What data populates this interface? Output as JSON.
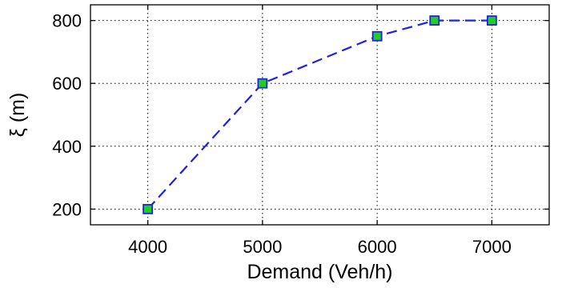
{
  "chart_data": {
    "type": "line",
    "xlabel": "Demand (Veh/h)",
    "ylabel": "ξ (m)",
    "xlim": [
      3500,
      7500
    ],
    "ylim": [
      150,
      850
    ],
    "xticks": [
      4000,
      5000,
      6000,
      7000
    ],
    "yticks": [
      200,
      400,
      600,
      800
    ],
    "grid": true,
    "series": [
      {
        "x": [
          4000,
          5000,
          6000,
          6500,
          7000
        ],
        "y": [
          200,
          600,
          750,
          800,
          800
        ],
        "line_color": "#1f1fe6",
        "line_style": "dashed",
        "marker": "square",
        "marker_fill": "#22cc22",
        "marker_edge": "#1f1fe6"
      }
    ]
  }
}
